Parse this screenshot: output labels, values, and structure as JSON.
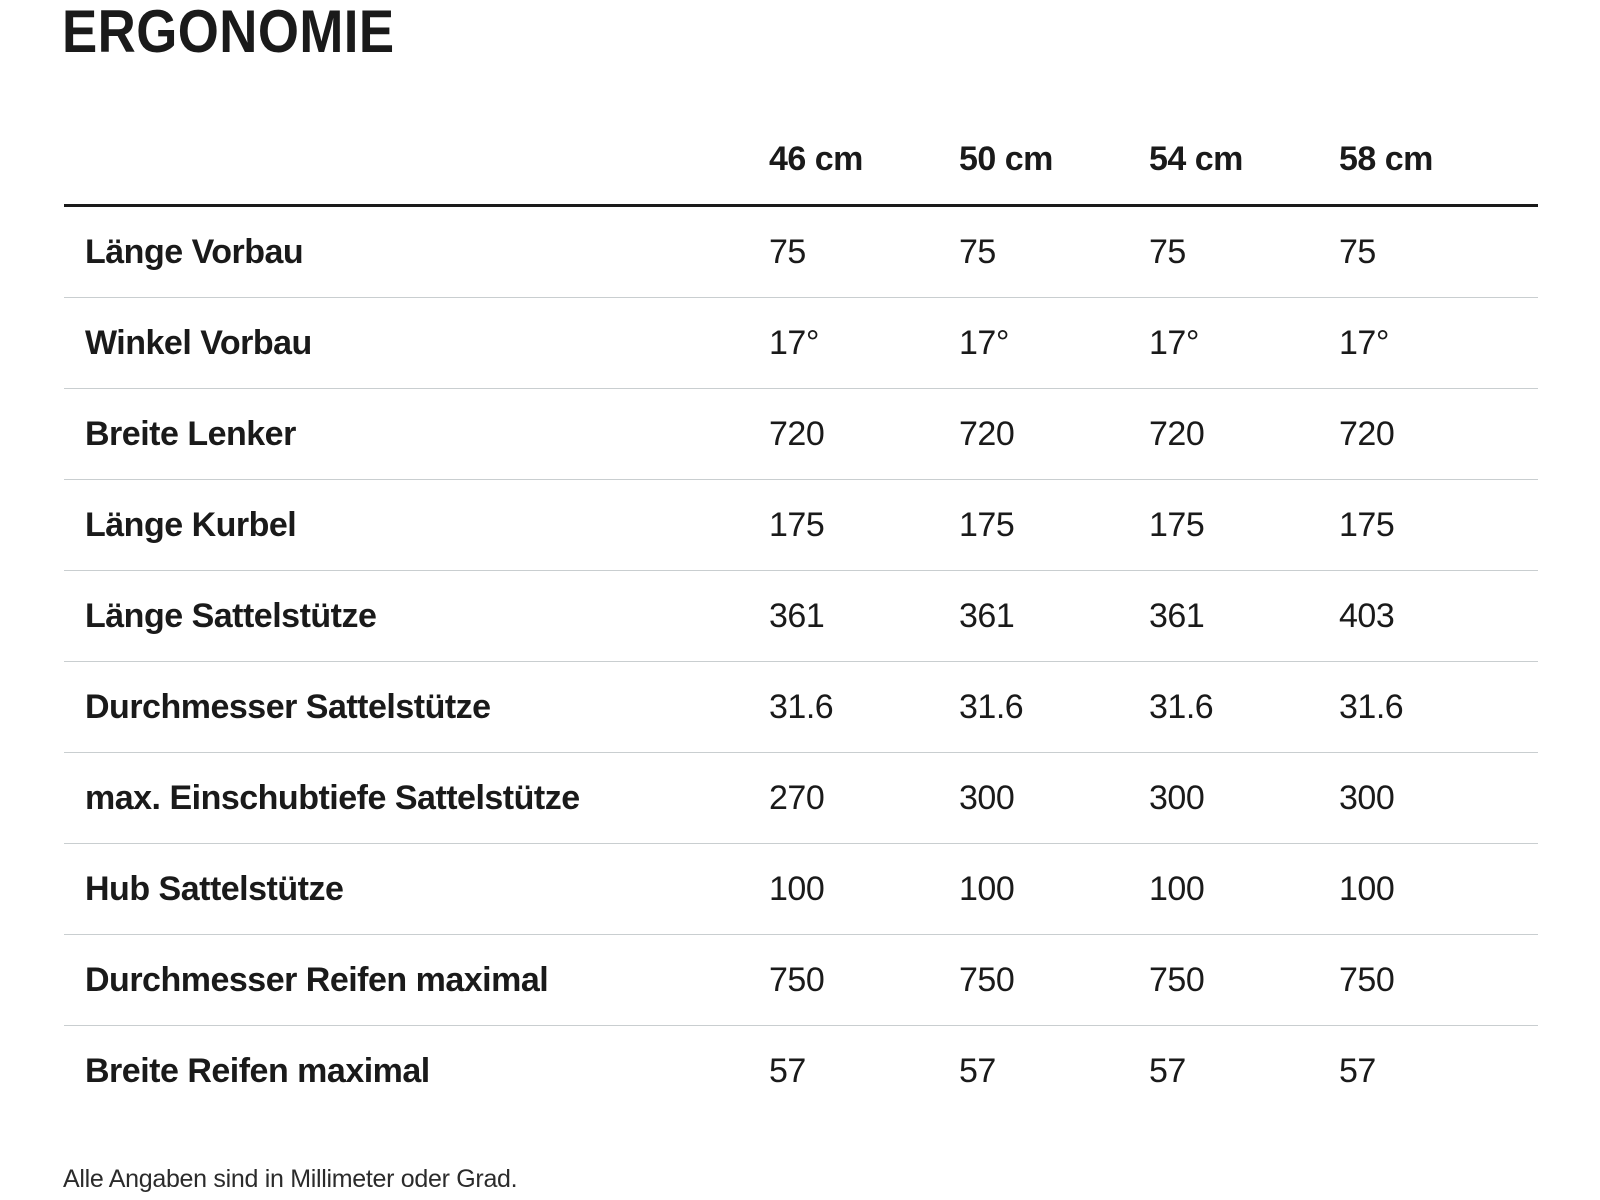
{
  "page_title": "ERGONOMIE",
  "footnote": "Alle Angaben sind in Millimeter oder Grad.",
  "colors": {
    "text": "#1a1a1a",
    "header_rule": "#1a1a1a",
    "row_separator": "#c9ced0",
    "background": "#ffffff"
  },
  "table": {
    "header": {
      "labels": [
        "46 cm",
        "50 cm",
        "54 cm",
        "58 cm"
      ]
    },
    "rows": [
      {
        "label": "Länge Vorbau",
        "values": [
          "75",
          "75",
          "75",
          "75"
        ]
      },
      {
        "label": "Winkel Vorbau",
        "values": [
          "17°",
          "17°",
          "17°",
          "17°"
        ]
      },
      {
        "label": "Breite Lenker",
        "values": [
          "720",
          "720",
          "720",
          "720"
        ]
      },
      {
        "label": "Länge Kurbel",
        "values": [
          "175",
          "175",
          "175",
          "175"
        ]
      },
      {
        "label": "Länge Sattelstütze",
        "values": [
          "361",
          "361",
          "361",
          "403"
        ]
      },
      {
        "label": "Durchmesser Sattelstütze",
        "values": [
          "31.6",
          "31.6",
          "31.6",
          "31.6"
        ]
      },
      {
        "label": "max. Einschubtiefe Sattelstütze",
        "values": [
          "270",
          "300",
          "300",
          "300"
        ]
      },
      {
        "label": "Hub Sattelstütze",
        "values": [
          "100",
          "100",
          "100",
          "100"
        ]
      },
      {
        "label": "Durchmesser Reifen maximal",
        "values": [
          "750",
          "750",
          "750",
          "750"
        ]
      },
      {
        "label": "Breite Reifen maximal",
        "values": [
          "57",
          "57",
          "57",
          "57"
        ]
      }
    ]
  }
}
